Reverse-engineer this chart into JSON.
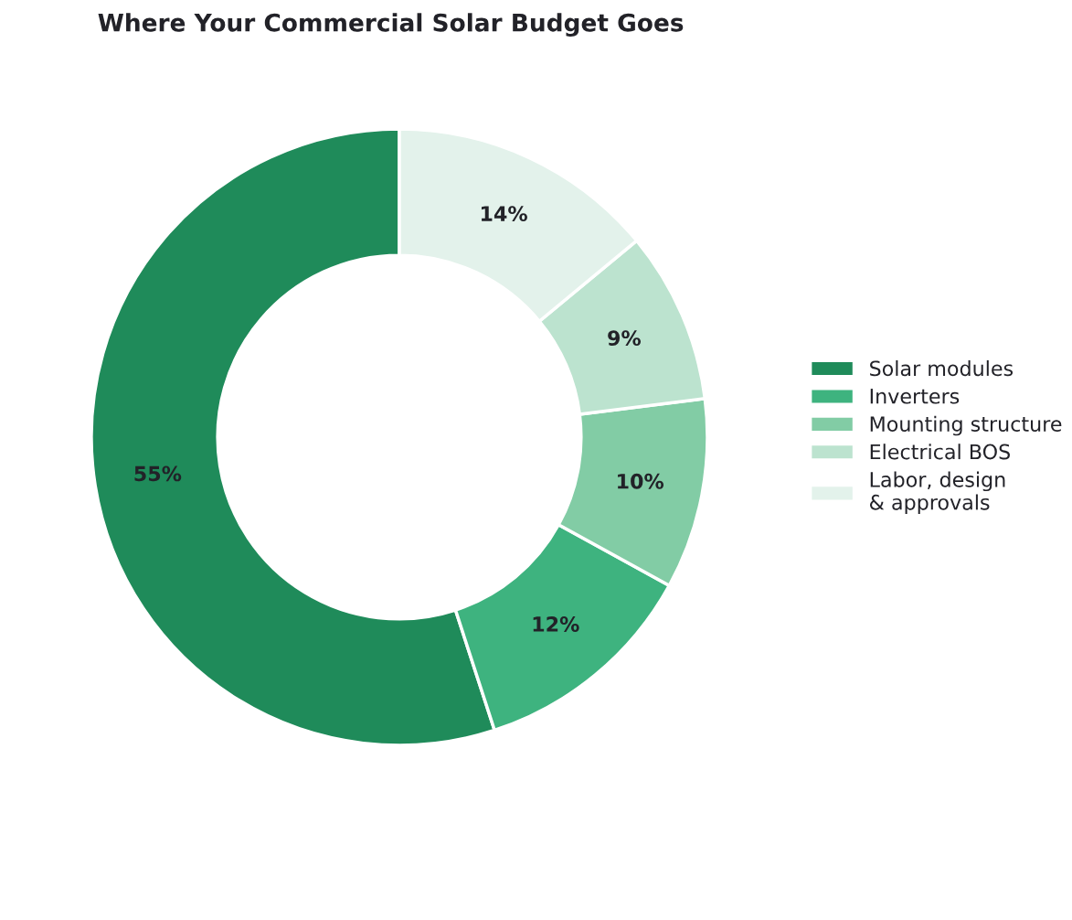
{
  "chart_data": {
    "type": "donut",
    "title": "Where Your Commercial Solar Budget Goes",
    "categories": [
      "Solar modules",
      "Inverters",
      "Mounting structure",
      "Electrical BOS",
      "Labor, design\n& approvals"
    ],
    "values": [
      55,
      12,
      10,
      9,
      14
    ],
    "colors": [
      "#1f8b5a",
      "#3eb37f",
      "#82cca5",
      "#bce3cf",
      "#e3f2eb"
    ],
    "value_labels": [
      "55%",
      "12%",
      "10%",
      "9%",
      "14%"
    ],
    "legend": "right"
  }
}
